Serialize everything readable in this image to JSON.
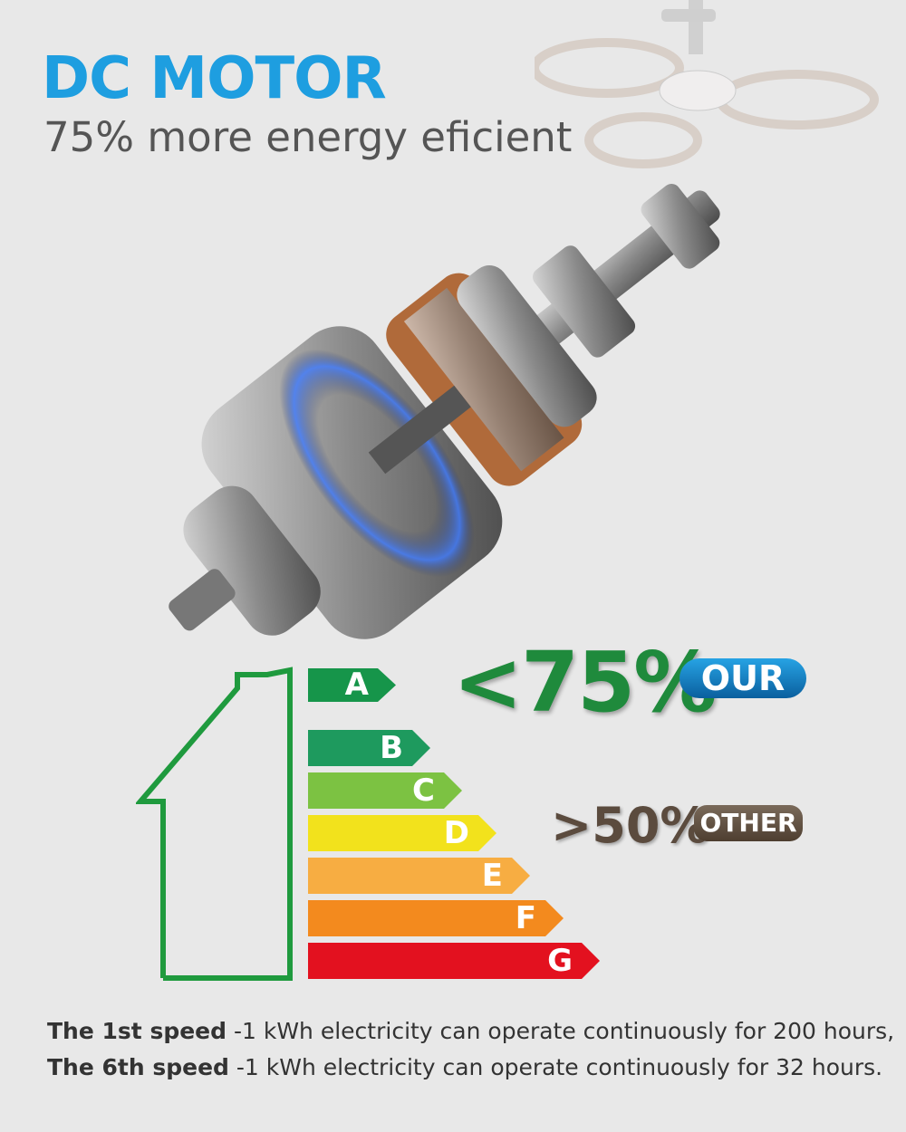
{
  "header": {
    "title": "DC MOTOR",
    "subtitle": "75% more energy eficient"
  },
  "energy_scale": {
    "bars": [
      {
        "label": "A",
        "color": "#16954a"
      },
      {
        "label": "B",
        "color": "#1e9a5e"
      },
      {
        "label": "C",
        "color": "#7cc242"
      },
      {
        "label": "D",
        "color": "#f2e21c"
      },
      {
        "label": "E",
        "color": "#f7ad42"
      },
      {
        "label": "F",
        "color": "#f38a1e"
      },
      {
        "label": "G",
        "color": "#e3111f"
      }
    ]
  },
  "comparison": {
    "our_value": "<75%",
    "our_label": "OUR",
    "other_value": ">50%",
    "other_label": "OTHER"
  },
  "notes": [
    {
      "bold": "The 1st speed",
      "text": " -1 kWh electricity can operate continuously for 200 hours,"
    },
    {
      "bold": "The 6th speed",
      "text": " -1 kWh electricity can operate continuously for 32 hours."
    }
  ]
}
